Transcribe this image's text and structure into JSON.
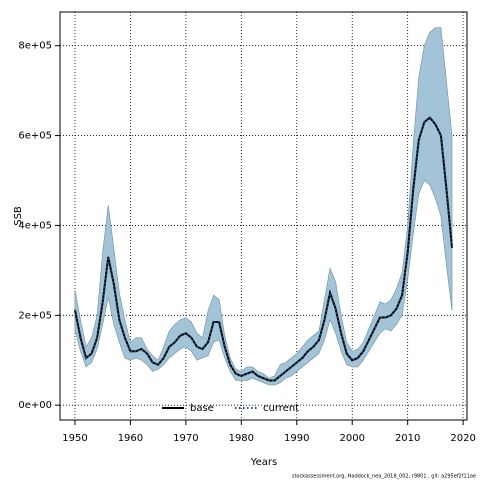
{
  "chart_data": {
    "type": "line",
    "y_label": "SSB",
    "x_label": "Years",
    "footnote": "stockassessment.org, Haddock_nea_2018_002, r9801 , git: a295ef2f11ae",
    "x": [
      1950,
      1951,
      1952,
      1953,
      1954,
      1955,
      1956,
      1957,
      1958,
      1959,
      1960,
      1961,
      1962,
      1963,
      1964,
      1965,
      1966,
      1967,
      1968,
      1969,
      1970,
      1971,
      1972,
      1973,
      1974,
      1975,
      1976,
      1977,
      1978,
      1979,
      1980,
      1981,
      1982,
      1983,
      1984,
      1985,
      1986,
      1987,
      1988,
      1989,
      1990,
      1991,
      1992,
      1993,
      1994,
      1995,
      1996,
      1997,
      1998,
      1999,
      2000,
      2001,
      2002,
      2003,
      2004,
      2005,
      2006,
      2007,
      2008,
      2009,
      2010,
      2011,
      2012,
      2013,
      2014,
      2015,
      2016,
      2017,
      2018
    ],
    "band": {
      "color": "#a3c3d6",
      "edge": "#6f8fa3",
      "upper": [
        256000,
        190000,
        130000,
        150000,
        200000,
        340000,
        445000,
        350000,
        250000,
        190000,
        140000,
        150000,
        150000,
        125000,
        110000,
        100000,
        130000,
        165000,
        180000,
        190000,
        195000,
        185000,
        160000,
        150000,
        210000,
        245000,
        235000,
        155000,
        105000,
        80000,
        75000,
        85000,
        85000,
        75000,
        70000,
        60000,
        65000,
        90000,
        95000,
        105000,
        115000,
        130000,
        145000,
        155000,
        165000,
        235000,
        305000,
        275000,
        200000,
        140000,
        120000,
        125000,
        140000,
        170000,
        200000,
        230000,
        225000,
        235000,
        260000,
        295000,
        400000,
        580000,
        730000,
        800000,
        830000,
        840000,
        840000,
        720000,
        600000
      ],
      "lower": [
        167000,
        120000,
        85000,
        95000,
        125000,
        180000,
        240000,
        180000,
        140000,
        105000,
        100000,
        105000,
        100000,
        90000,
        75000,
        80000,
        90000,
        105000,
        115000,
        125000,
        130000,
        120000,
        100000,
        105000,
        110000,
        140000,
        145000,
        105000,
        75000,
        55000,
        55000,
        55000,
        60000,
        55000,
        50000,
        45000,
        45000,
        50000,
        60000,
        65000,
        75000,
        85000,
        95000,
        105000,
        115000,
        145000,
        190000,
        160000,
        120000,
        90000,
        85000,
        85000,
        100000,
        120000,
        140000,
        160000,
        170000,
        165000,
        180000,
        200000,
        280000,
        380000,
        470000,
        500000,
        490000,
        460000,
        420000,
        310000,
        210000
      ]
    },
    "series": [
      {
        "name": "base",
        "color": "#000000",
        "dash": "solid",
        "values": [
          212000,
          150000,
          105000,
          115000,
          150000,
          230000,
          330000,
          270000,
          190000,
          150000,
          120000,
          120000,
          125000,
          115000,
          95000,
          90000,
          105000,
          130000,
          140000,
          155000,
          160000,
          150000,
          130000,
          125000,
          140000,
          185000,
          185000,
          130000,
          90000,
          70000,
          65000,
          70000,
          75000,
          65000,
          60000,
          55000,
          55000,
          65000,
          75000,
          85000,
          95000,
          105000,
          120000,
          130000,
          145000,
          190000,
          250000,
          215000,
          160000,
          115000,
          100000,
          105000,
          120000,
          145000,
          170000,
          195000,
          195000,
          200000,
          215000,
          245000,
          340000,
          480000,
          590000,
          630000,
          640000,
          625000,
          600000,
          480000,
          350000
        ]
      },
      {
        "name": "current",
        "color": "#1c4f7a",
        "dash": "dotted",
        "values": [
          212000,
          150000,
          105000,
          115000,
          150000,
          230000,
          330000,
          270000,
          190000,
          150000,
          120000,
          120000,
          125000,
          115000,
          95000,
          90000,
          105000,
          130000,
          140000,
          155000,
          160000,
          150000,
          130000,
          125000,
          140000,
          185000,
          185000,
          130000,
          90000,
          70000,
          65000,
          70000,
          75000,
          65000,
          60000,
          55000,
          55000,
          65000,
          75000,
          85000,
          95000,
          105000,
          120000,
          130000,
          145000,
          190000,
          250000,
          215000,
          160000,
          115000,
          100000,
          105000,
          120000,
          145000,
          170000,
          195000,
          195000,
          200000,
          215000,
          245000,
          340000,
          480000,
          590000,
          630000,
          640000,
          625000,
          600000,
          480000,
          350000
        ]
      }
    ],
    "xlim": [
      1947.3,
      2020.7
    ],
    "ylim": [
      -33000,
      875000
    ],
    "xticks": [
      1950,
      1960,
      1970,
      1980,
      1990,
      2000,
      2010,
      2020
    ],
    "yticks": [
      {
        "value": 0,
        "label": "0e+00"
      },
      {
        "value": 200000,
        "label": "2e+05"
      },
      {
        "value": 400000,
        "label": "4e+05"
      },
      {
        "value": 600000,
        "label": "6e+05"
      },
      {
        "value": 800000,
        "label": "8e+05"
      }
    ],
    "grid": true,
    "legend": "bottom"
  }
}
